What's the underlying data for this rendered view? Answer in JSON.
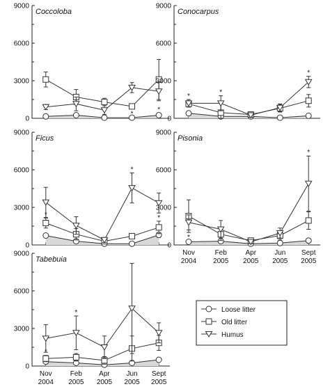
{
  "chart_data": [
    {
      "type": "line",
      "title": "Coccoloba",
      "categories": [
        "Nov 2004",
        "Feb 2005",
        "Apr 2005",
        "Jun 2005",
        "Sept 2005"
      ],
      "ylim": [
        0,
        9000
      ],
      "yticks": [
        "0",
        "3000",
        "6000",
        "9000"
      ],
      "show_xticklabels": false,
      "series": [
        {
          "name": "Loose litter",
          "values": [
            150,
            250,
            50,
            50,
            250
          ],
          "err": [
            80,
            100,
            40,
            40,
            180
          ],
          "stars": [
            false,
            false,
            false,
            true,
            true
          ]
        },
        {
          "name": "Old litter",
          "values": [
            3100,
            1700,
            1300,
            950,
            3100
          ],
          "err": [
            600,
            600,
            300,
            100,
            1600
          ],
          "stars": [
            false,
            false,
            false,
            false,
            false
          ]
        },
        {
          "name": "Humus",
          "values": [
            900,
            1150,
            650,
            2450,
            2150
          ],
          "err": [
            200,
            550,
            350,
            400,
            750
          ],
          "stars": [
            false,
            false,
            false,
            false,
            false
          ]
        }
      ]
    },
    {
      "type": "line",
      "title": "Conocarpus",
      "categories": [
        "Nov 2004",
        "Feb 2005",
        "Apr 2005",
        "Jun 2005",
        "Sept 2005"
      ],
      "ylim": [
        0,
        9000
      ],
      "yticks": [
        "0",
        "3000",
        "6000",
        "9000"
      ],
      "show_xticklabels": false,
      "series": [
        {
          "name": "Loose litter",
          "values": [
            400,
            150,
            150,
            50,
            200
          ],
          "err": [
            100,
            60,
            60,
            40,
            80
          ],
          "stars": [
            false,
            false,
            false,
            false,
            false
          ]
        },
        {
          "name": "Old litter",
          "values": [
            1150,
            450,
            300,
            800,
            1400
          ],
          "err": [
            250,
            900,
            150,
            300,
            500
          ],
          "stars": [
            false,
            false,
            false,
            false,
            false
          ]
        },
        {
          "name": "Humus",
          "values": [
            1200,
            1200,
            250,
            850,
            2900
          ],
          "err": [
            300,
            600,
            150,
            300,
            450
          ],
          "stars": [
            true,
            true,
            false,
            false,
            true
          ]
        }
      ]
    },
    {
      "type": "line",
      "title": "Ficus",
      "categories": [
        "Nov 2004",
        "Feb 2005",
        "Apr 2005",
        "Jun 2005",
        "Sept 2005"
      ],
      "ylim": [
        0,
        9000
      ],
      "yticks": [
        "0",
        "3000",
        "6000",
        "9000"
      ],
      "show_xticklabels": false,
      "series": [
        {
          "name": "Loose litter",
          "values": [
            750,
            300,
            100,
            100,
            800
          ],
          "err": [
            150,
            120,
            60,
            50,
            200
          ],
          "stars": [
            false,
            false,
            false,
            false,
            false
          ]
        },
        {
          "name": "Old litter",
          "values": [
            1750,
            850,
            300,
            700,
            1400
          ],
          "err": [
            400,
            450,
            150,
            200,
            500
          ],
          "stars": [
            true,
            false,
            false,
            false,
            true
          ]
        },
        {
          "name": "Humus",
          "values": [
            3400,
            1550,
            400,
            4550,
            3350
          ],
          "err": [
            1200,
            700,
            200,
            1200,
            800
          ],
          "stars": [
            false,
            false,
            false,
            true,
            false
          ]
        }
      ]
    },
    {
      "type": "line",
      "title": "Pisonia",
      "categories": [
        "Nov 2004",
        "Feb 2005",
        "Apr 2005",
        "Jun 2005",
        "Sept 2005"
      ],
      "ylim": [
        0,
        9000
      ],
      "yticks": [
        "0",
        "3000",
        "6000",
        "9000"
      ],
      "show_xticklabels": true,
      "series": [
        {
          "name": "Loose litter",
          "values": [
            250,
            300,
            100,
            150,
            350
          ],
          "err": [
            80,
            100,
            50,
            60,
            100
          ],
          "stars": [
            true,
            false,
            false,
            false,
            false
          ]
        },
        {
          "name": "Old litter",
          "values": [
            2300,
            850,
            350,
            750,
            1950
          ],
          "err": [
            1300,
            500,
            200,
            350,
            700
          ],
          "stars": [
            false,
            false,
            false,
            false,
            false
          ]
        },
        {
          "name": "Humus",
          "values": [
            1800,
            1250,
            250,
            950,
            4900
          ],
          "err": [
            600,
            700,
            150,
            400,
            2200
          ],
          "stars": [
            false,
            false,
            false,
            false,
            true
          ]
        }
      ]
    },
    {
      "type": "line",
      "title": "Tabebuia",
      "categories": [
        "Nov 2004",
        "Feb 2005",
        "Apr 2005",
        "Jun 2005",
        "Sept 2005"
      ],
      "ylim": [
        0,
        9000
      ],
      "yticks": [
        "0",
        "3000",
        "6000",
        "9000"
      ],
      "show_xticklabels": true,
      "series": [
        {
          "name": "Loose litter",
          "values": [
            350,
            250,
            100,
            250,
            500
          ],
          "err": [
            100,
            100,
            60,
            120,
            150
          ],
          "stars": [
            false,
            false,
            false,
            false,
            false
          ]
        },
        {
          "name": "Old litter",
          "values": [
            600,
            700,
            450,
            1400,
            1850
          ],
          "err": [
            250,
            300,
            300,
            1000,
            600
          ],
          "stars": [
            true,
            false,
            false,
            false,
            false
          ]
        },
        {
          "name": "Humus",
          "values": [
            2200,
            2650,
            1500,
            4600,
            2650
          ],
          "err": [
            1100,
            1350,
            900,
            3600,
            800
          ],
          "stars": [
            false,
            true,
            false,
            false,
            false
          ]
        }
      ]
    }
  ],
  "legend": {
    "placement": "bottom-right",
    "items": [
      {
        "label": "Loose litter",
        "marker": "circle"
      },
      {
        "label": "Old litter",
        "marker": "square"
      },
      {
        "label": "Humus",
        "marker": "triangle-down"
      }
    ]
  },
  "colors": {
    "line": "#333333",
    "marker_fill": "#ffffff",
    "band": "#d8d8d8"
  }
}
